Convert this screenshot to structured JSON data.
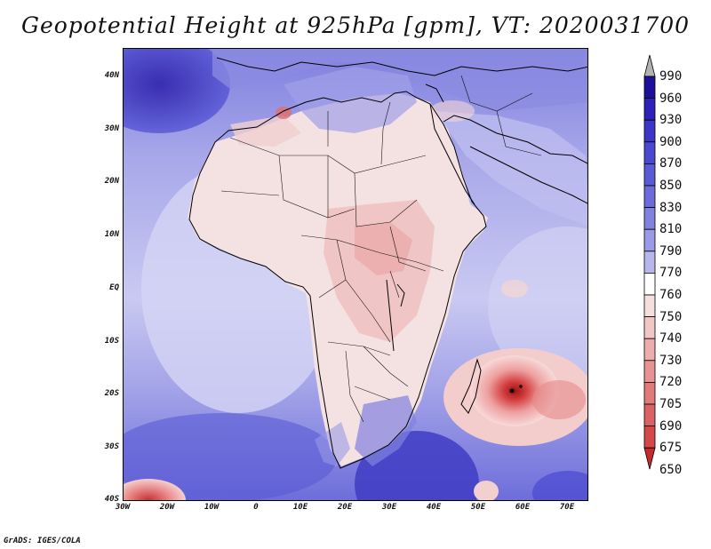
{
  "title": "Geopotential Height at 925hPa [gpm], VT: 2020031700",
  "credit": "GrADS: IGES/COLA",
  "map": {
    "lat_labels": [
      "40N",
      "30N",
      "20N",
      "10N",
      "EQ",
      "10S",
      "20S",
      "30S",
      "40S"
    ],
    "lon_labels": [
      "30W",
      "20W",
      "10W",
      "0",
      "10E",
      "20E",
      "30E",
      "40E",
      "50E",
      "60E",
      "70E"
    ]
  },
  "colorbar": {
    "levels": [
      "990",
      "960",
      "930",
      "900",
      "870",
      "850",
      "830",
      "810",
      "790",
      "770",
      "760",
      "750",
      "740",
      "730",
      "720",
      "705",
      "690",
      "675",
      "650"
    ],
    "colors": [
      "#b2b2b2",
      "#1e0f9a",
      "#2e20b8",
      "#3b35c8",
      "#4a48d0",
      "#5a5ad6",
      "#6b6bdb",
      "#8181e0",
      "#9a9ae6",
      "#b7b7ee",
      "#ffffff",
      "#f6dede",
      "#f3c6c6",
      "#eeacac",
      "#e89393",
      "#e27a7a",
      "#da6262",
      "#d44848",
      "#c42b2b"
    ]
  }
}
